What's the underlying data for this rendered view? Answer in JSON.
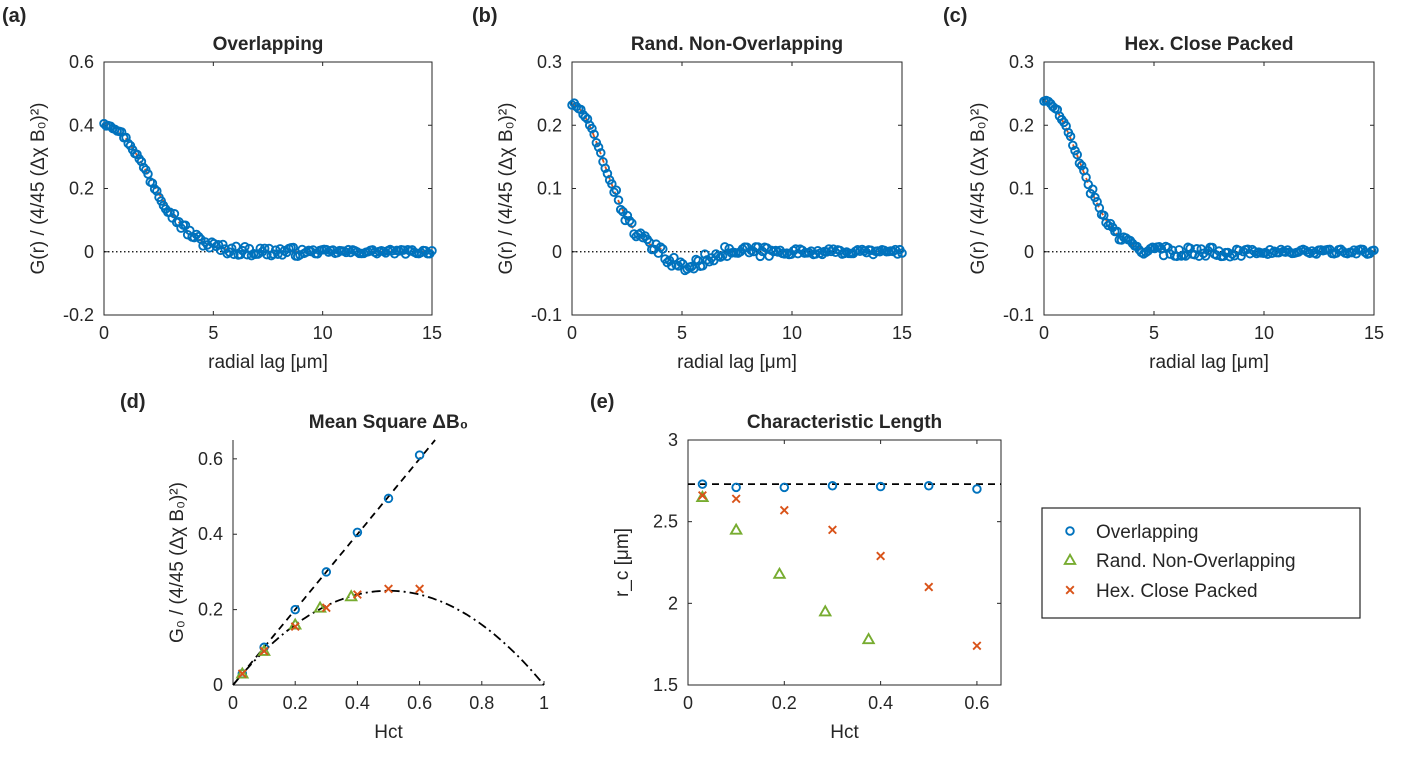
{
  "colors": {
    "overlapping": "#0072BD",
    "rand_non_overlapping": "#77AC30",
    "hex_close_packed": "#D95319",
    "fit": "#D95319",
    "axis": "#262626"
  },
  "legend": {
    "entries": [
      {
        "label": "Overlapping",
        "marker": "circle",
        "color": "#0072BD"
      },
      {
        "label": "Rand. Non-Overlapping",
        "marker": "triangle",
        "color": "#77AC30"
      },
      {
        "label": "Hex. Close Packed",
        "marker": "cross",
        "color": "#D95319"
      }
    ]
  },
  "chart_data": [
    {
      "panel": "(a)",
      "type": "scatter",
      "title": "Overlapping",
      "xlabel": "radial lag  [μm]",
      "ylabel": "G(r) / (4/45 (Δχ B₀)²)",
      "xlim": [
        0,
        15
      ],
      "ylim": [
        -0.2,
        0.6
      ],
      "xticks": [
        0,
        5,
        10,
        15
      ],
      "yticks": [
        -0.2,
        0,
        0.2,
        0.4,
        0.6
      ],
      "ytick_labels": [
        "-0.2",
        "0",
        "0.2",
        "0.4",
        "0.6"
      ],
      "fit": {
        "style": "dashed",
        "g0": 0.405,
        "sigma": 2.0,
        "wiggle": 0
      },
      "scatter": {
        "g0": 0.405,
        "sigma": 2.0,
        "noise": 0.015,
        "wiggle": 0,
        "n": 150
      }
    },
    {
      "panel": "(b)",
      "type": "scatter",
      "title": "Rand. Non-Overlapping",
      "xlabel": "radial lag  [μm]",
      "ylabel": "G(r) / (4/45 (Δχ B₀)²)",
      "xlim": [
        0,
        15
      ],
      "ylim": [
        -0.1,
        0.3
      ],
      "xticks": [
        0,
        5,
        10,
        15
      ],
      "yticks": [
        -0.1,
        0,
        0.1,
        0.2,
        0.3
      ],
      "ytick_labels": [
        "-0.1",
        "0",
        "0.1",
        "0.2",
        "0.3"
      ],
      "fit": {
        "style": "dashed",
        "g0": 0.232,
        "sigma": 1.45,
        "wiggle": 0,
        "xmax": 4.2
      },
      "scatter": {
        "g0": 0.232,
        "sigma": 1.45,
        "noise": 0.009,
        "wiggle": 0.025,
        "n": 150
      }
    },
    {
      "panel": "(c)",
      "type": "scatter",
      "title": "Hex. Close Packed",
      "xlabel": "radial lag  [μm]",
      "ylabel": "G(r) / (4/45 (Δχ B₀)²)",
      "xlim": [
        0,
        15
      ],
      "ylim": [
        -0.1,
        0.3
      ],
      "xticks": [
        0,
        5,
        10,
        15
      ],
      "yticks": [
        -0.1,
        0,
        0.1,
        0.2,
        0.3
      ],
      "ytick_labels": [
        "-0.1",
        "0",
        "0.1",
        "0.2",
        "0.3"
      ],
      "fit": {
        "style": "dashed",
        "g0": 0.238,
        "sigma": 1.6,
        "wiggle": 0,
        "xmax": 4.6
      },
      "scatter": {
        "g0": 0.238,
        "sigma": 1.6,
        "noise": 0.008,
        "wiggle": 0,
        "n": 150
      }
    },
    {
      "panel": "(d)",
      "type": "scatter",
      "title": "Mean Square ΔB₀",
      "xlabel": "Hct",
      "ylabel": "G₀ / (4/45 (Δχ B₀)²)",
      "xlim": [
        0,
        1
      ],
      "ylim": [
        0,
        0.65
      ],
      "xticks": [
        0,
        0.2,
        0.4,
        0.6,
        0.8,
        1
      ],
      "xtick_labels": [
        "0",
        "0.2",
        "0.4",
        "0.6",
        "0.8",
        "1"
      ],
      "yticks": [
        0,
        0.2,
        0.4,
        0.6
      ],
      "ytick_labels": [
        "0",
        "0.2",
        "0.4",
        "0.6"
      ],
      "lines": [
        {
          "name": "linear",
          "style": "dashed",
          "formula": "y = x"
        },
        {
          "name": "parabola",
          "style": "dashdot",
          "formula": "y = x(1-x)"
        }
      ],
      "series": [
        {
          "name": "Overlapping",
          "marker": "circle",
          "x": [
            0.03,
            0.1,
            0.2,
            0.3,
            0.4,
            0.5,
            0.6
          ],
          "y": [
            0.03,
            0.1,
            0.2,
            0.3,
            0.405,
            0.495,
            0.61
          ]
        },
        {
          "name": "Rand. Non-Overlapping",
          "marker": "triangle",
          "x": [
            0.03,
            0.1,
            0.2,
            0.28,
            0.38
          ],
          "y": [
            0.03,
            0.09,
            0.16,
            0.205,
            0.235
          ]
        },
        {
          "name": "Hex. Close Packed",
          "marker": "cross",
          "x": [
            0.03,
            0.1,
            0.2,
            0.3,
            0.4,
            0.5,
            0.6
          ],
          "y": [
            0.03,
            0.09,
            0.155,
            0.205,
            0.24,
            0.255,
            0.255
          ]
        }
      ]
    },
    {
      "panel": "(e)",
      "type": "scatter",
      "title": "Characteristic Length",
      "xlabel": "Hct",
      "ylabel": "r_c  [μm]",
      "xlim": [
        0,
        0.65
      ],
      "ylim": [
        1.5,
        3
      ],
      "xticks": [
        0,
        0.2,
        0.4,
        0.6
      ],
      "xtick_labels": [
        "0",
        "0.2",
        "0.4",
        "0.6"
      ],
      "yticks": [
        1.5,
        2,
        2.5,
        3
      ],
      "ytick_labels": [
        "1.5",
        "2",
        "2.5",
        "3"
      ],
      "hline": {
        "y": 2.73,
        "style": "dashed"
      },
      "series": [
        {
          "name": "Overlapping",
          "marker": "circle",
          "x": [
            0.03,
            0.1,
            0.2,
            0.3,
            0.4,
            0.5,
            0.6
          ],
          "y": [
            2.73,
            2.71,
            2.71,
            2.72,
            2.715,
            2.72,
            2.7
          ]
        },
        {
          "name": "Rand. Non-Overlapping",
          "marker": "triangle",
          "x": [
            0.03,
            0.1,
            0.19,
            0.285,
            0.375
          ],
          "y": [
            2.65,
            2.45,
            2.18,
            1.95,
            1.78
          ]
        },
        {
          "name": "Hex. Close Packed",
          "marker": "cross",
          "x": [
            0.03,
            0.1,
            0.2,
            0.3,
            0.4,
            0.5,
            0.6
          ],
          "y": [
            2.66,
            2.64,
            2.57,
            2.45,
            2.29,
            2.1,
            1.74
          ]
        }
      ]
    }
  ]
}
